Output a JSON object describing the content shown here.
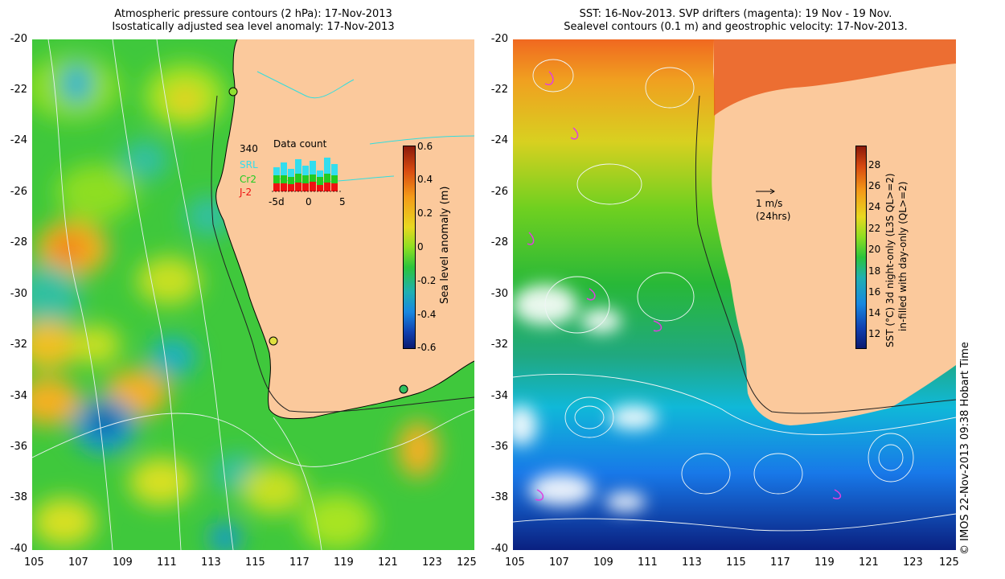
{
  "left_panel": {
    "title_line1": "Atmospheric pressure contours (2 hPa): 17-Nov-2013",
    "title_line2": "Isostatically adjusted sea level anomaly: 17-Nov-2013",
    "colorbar": {
      "label": "Sea level anomaly (m)",
      "ticks": [
        "0.6",
        "0.4",
        "0.2",
        "0",
        "-0.2",
        "-0.4",
        "-0.6"
      ]
    },
    "inset": {
      "title": "Data count",
      "max_count": "340",
      "legend": [
        "SRL",
        "Cr2",
        "J-2"
      ],
      "xticks": [
        "-5d",
        "0",
        "5"
      ],
      "colors": {
        "SRL": "#33ddee",
        "Cr2": "#22cc22",
        "J-2": "#ee1111"
      }
    }
  },
  "right_panel": {
    "title_line1": "SST: 16-Nov-2013. SVP drifters (magenta): 19 Nov - 19 Nov.",
    "title_line2": "Sealevel contours (0.1 m) and geostrophic velocity: 17-Nov-2013.",
    "scale_arrow_label1": "1 m/s",
    "scale_arrow_label2": "(24hrs)",
    "colorbar": {
      "label_line1": "SST (°C)  3d night-only (L3S QL>=2)",
      "label_line2": "in-filled with day-only (QL>=2)",
      "ticks": [
        "28",
        "26",
        "24",
        "22",
        "20",
        "18",
        "16",
        "14",
        "12"
      ]
    }
  },
  "axes": {
    "x_ticks": [
      "105",
      "107",
      "109",
      "111",
      "113",
      "115",
      "117",
      "119",
      "121",
      "123",
      "125"
    ],
    "y_ticks": [
      "-20",
      "-22",
      "-24",
      "-26",
      "-28",
      "-30",
      "-32",
      "-34",
      "-36",
      "-38",
      "-40"
    ]
  },
  "copyright": "© IMOS 22-Nov-2013 09:38 Hobart Time",
  "colors": {
    "land": "#fbc99c",
    "ocean_green": "#3cc83c",
    "sst_blue": "#1a8ee0"
  }
}
